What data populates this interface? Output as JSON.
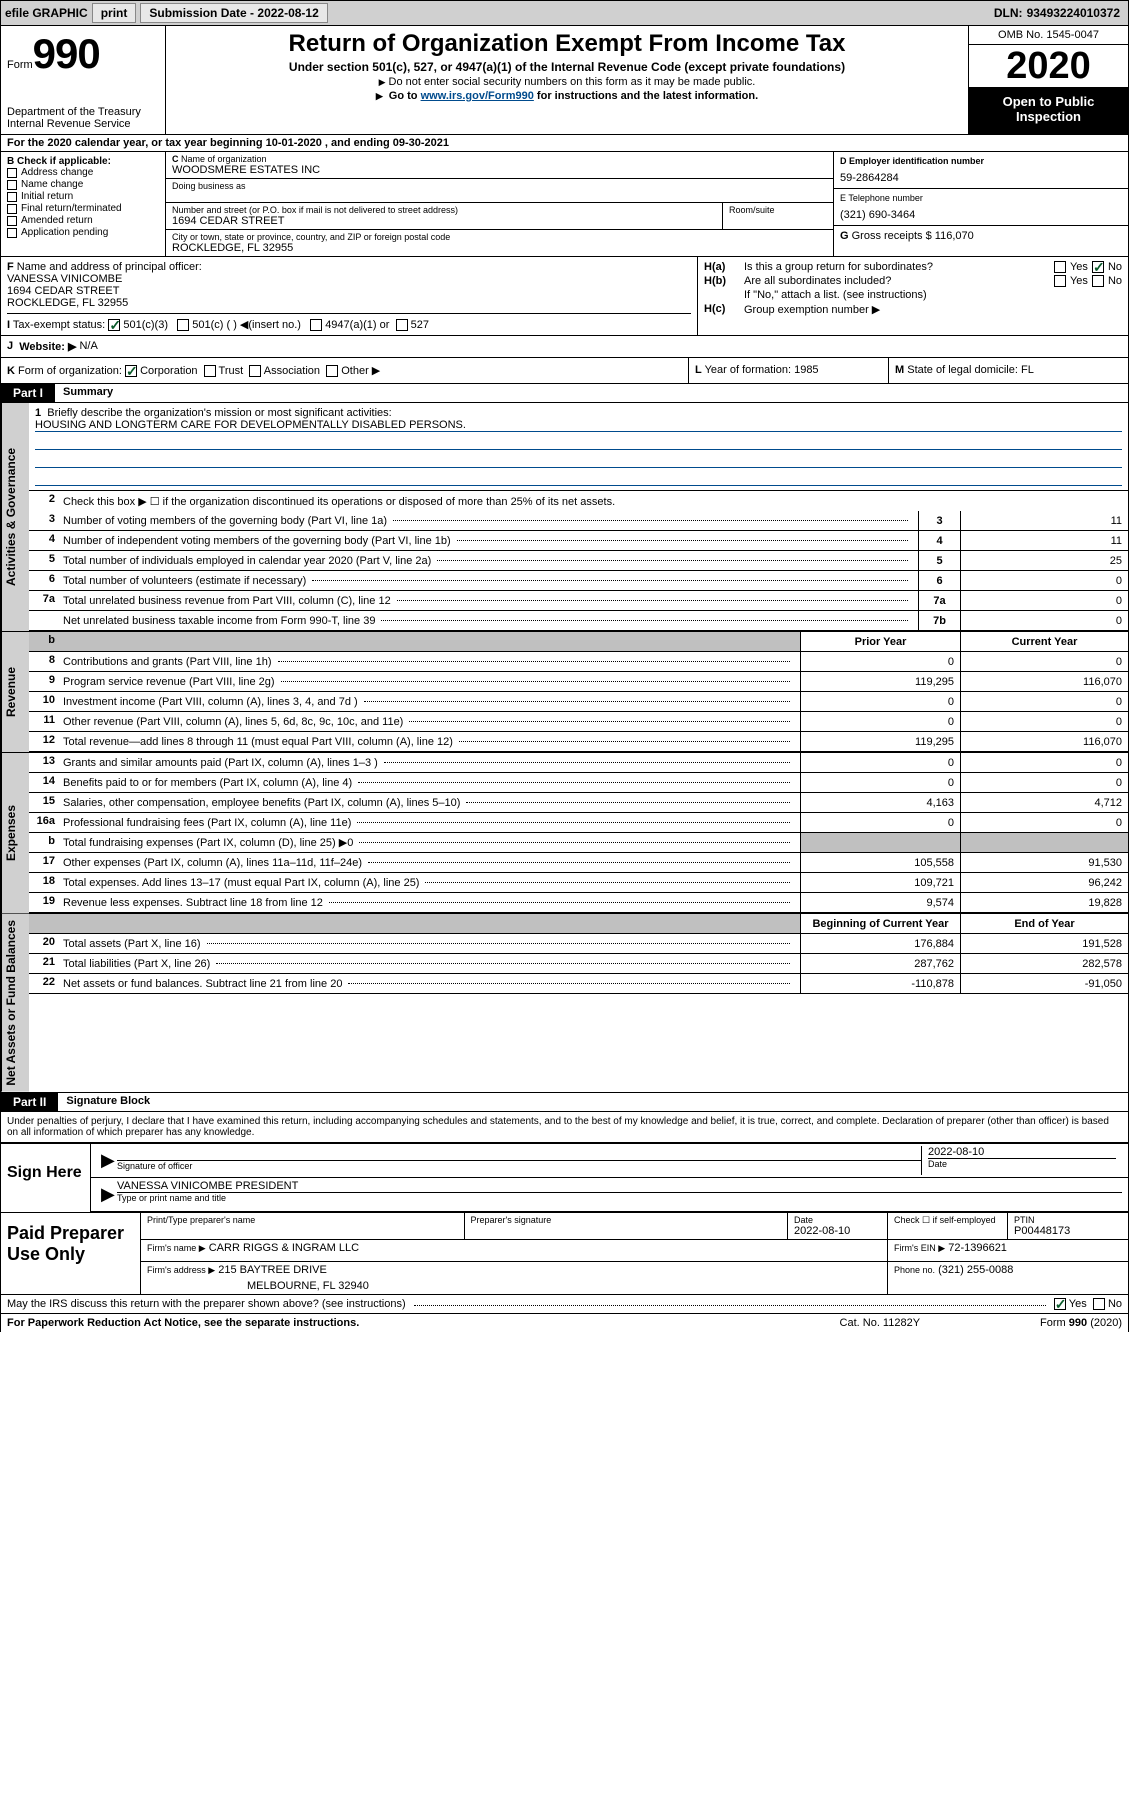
{
  "topbar": {
    "efile_label": "efile GRAPHIC",
    "print_btn": "print",
    "submission_label": "Submission Date - ",
    "submission_date": "2022-08-12",
    "dln_label": "DLN: ",
    "dln": "93493224010372"
  },
  "header": {
    "form_label": "Form",
    "form_number": "990",
    "dept": "Department of the Treasury",
    "irs": "Internal Revenue Service",
    "title": "Return of Organization Exempt From Income Tax",
    "subtitle": "Under section 501(c), 527, or 4947(a)(1) of the Internal Revenue Code (except private foundations)",
    "note1": "Do not enter social security numbers on this form as it may be made public.",
    "note2_pre": "Go to ",
    "note2_link": "www.irs.gov/Form990",
    "note2_post": " for instructions and the latest information.",
    "omb": "OMB No. 1545-0047",
    "year": "2020",
    "inspect1": "Open to Public",
    "inspect2": "Inspection"
  },
  "row_a": {
    "text": "For the 2020 calendar year, or tax year beginning 10-01-2020    , and ending 09-30-2021",
    "label_a": "A"
  },
  "section_b": {
    "label_b": "B",
    "check_label": "Check if applicable:",
    "opts": [
      "Address change",
      "Name change",
      "Initial return",
      "Final return/terminated",
      "Amended return",
      "Application pending"
    ],
    "c_label": "C",
    "name_label": "Name of organization",
    "name": "WOODSMERE ESTATES INC",
    "dba_label": "Doing business as",
    "street_label": "Number and street (or P.O. box if mail is not delivered to street address)",
    "street": "1694 CEDAR STREET",
    "suite_label": "Room/suite",
    "city_label": "City or town, state or province, country, and ZIP or foreign postal code",
    "city": "ROCKLEDGE, FL  32955",
    "d_label": "D Employer identification number",
    "ein": "59-2864284",
    "e_label": "E Telephone number",
    "phone": "(321) 690-3464",
    "g_label": "G",
    "gross_label": "Gross receipts $",
    "gross": "116,070"
  },
  "section_fh": {
    "f_label": "F",
    "f_text": "Name and address of principal officer:",
    "f_name": "VANESSA VINICOMBE",
    "f_street": "1694 CEDAR STREET",
    "f_city": "ROCKLEDGE, FL  32955",
    "ha_label": "H(a)",
    "ha_text": "Is this a group return for subordinates?",
    "ha_yes": "Yes",
    "ha_no": "No",
    "hb_label": "H(b)",
    "hb_text": "Are all subordinates included?",
    "hb_yes": "Yes",
    "hb_no": "No",
    "hb_note": "If \"No,\" attach a list. (see instructions)",
    "hc_label": "H(c)",
    "hc_text": "Group exemption number ▶"
  },
  "row_i": {
    "label": "I",
    "text": "Tax-exempt status:",
    "opt1": "501(c)(3)",
    "opt2": "501(c) (  ) ◀(insert no.)",
    "opt3": "4947(a)(1) or",
    "opt4": "527"
  },
  "row_j": {
    "label": "J",
    "text": "Website: ▶",
    "val": "N/A"
  },
  "row_k": {
    "k_label": "K",
    "k_text": "Form of organization:",
    "k_corp": "Corporation",
    "k_trust": "Trust",
    "k_assoc": "Association",
    "k_other": "Other ▶",
    "l_label": "L",
    "l_text": "Year of formation: ",
    "l_val": "1985",
    "m_label": "M",
    "m_text": "State of legal domicile: ",
    "m_val": "FL"
  },
  "part1": {
    "tab": "Part I",
    "title": "Summary",
    "vtab1": "Activities & Governance",
    "vtab2": "Revenue",
    "vtab3": "Expenses",
    "vtab4": "Net Assets or Fund Balances",
    "mission_label": "Briefly describe the organization's mission or most significant activities:",
    "mission": "HOUSING AND LONGTERM CARE FOR DEVELOPMENTALLY DISABLED PERSONS.",
    "line2": "Check this box ▶ ☐  if the organization discontinued its operations or disposed of more than 25% of its net assets.",
    "lines_gov": [
      {
        "n": "3",
        "desc": "Number of voting members of the governing body (Part VI, line 1a)",
        "box": "3",
        "val": "11"
      },
      {
        "n": "4",
        "desc": "Number of independent voting members of the governing body (Part VI, line 1b)",
        "box": "4",
        "val": "11"
      },
      {
        "n": "5",
        "desc": "Total number of individuals employed in calendar year 2020 (Part V, line 2a)",
        "box": "5",
        "val": "25"
      },
      {
        "n": "6",
        "desc": "Total number of volunteers (estimate if necessary)",
        "box": "6",
        "val": "0"
      },
      {
        "n": "7a",
        "desc": "Total unrelated business revenue from Part VIII, column (C), line 12",
        "box": "7a",
        "val": "0"
      },
      {
        "n": "",
        "desc": "Net unrelated business taxable income from Form 990-T, line 39",
        "box": "7b",
        "val": "0"
      }
    ],
    "col_prior": "Prior Year",
    "col_curr": "Current Year",
    "lines_rev": [
      {
        "n": "8",
        "desc": "Contributions and grants (Part VIII, line 1h)",
        "prior": "0",
        "curr": "0"
      },
      {
        "n": "9",
        "desc": "Program service revenue (Part VIII, line 2g)",
        "prior": "119,295",
        "curr": "116,070"
      },
      {
        "n": "10",
        "desc": "Investment income (Part VIII, column (A), lines 3, 4, and 7d )",
        "prior": "0",
        "curr": "0"
      },
      {
        "n": "11",
        "desc": "Other revenue (Part VIII, column (A), lines 5, 6d, 8c, 9c, 10c, and 11e)",
        "prior": "0",
        "curr": "0"
      },
      {
        "n": "12",
        "desc": "Total revenue—add lines 8 through 11 (must equal Part VIII, column (A), line 12)",
        "prior": "119,295",
        "curr": "116,070"
      }
    ],
    "lines_exp": [
      {
        "n": "13",
        "desc": "Grants and similar amounts paid (Part IX, column (A), lines 1–3 )",
        "prior": "0",
        "curr": "0"
      },
      {
        "n": "14",
        "desc": "Benefits paid to or for members (Part IX, column (A), line 4)",
        "prior": "0",
        "curr": "0"
      },
      {
        "n": "15",
        "desc": "Salaries, other compensation, employee benefits (Part IX, column (A), lines 5–10)",
        "prior": "4,163",
        "curr": "4,712"
      },
      {
        "n": "16a",
        "desc": "Professional fundraising fees (Part IX, column (A), line 11e)",
        "prior": "0",
        "curr": "0"
      },
      {
        "n": "b",
        "desc": "Total fundraising expenses (Part IX, column (D), line 25) ▶0",
        "prior": "",
        "curr": "",
        "grey": true
      },
      {
        "n": "17",
        "desc": "Other expenses (Part IX, column (A), lines 11a–11d, 11f–24e)",
        "prior": "105,558",
        "curr": "91,530"
      },
      {
        "n": "18",
        "desc": "Total expenses. Add lines 13–17 (must equal Part IX, column (A), line 25)",
        "prior": "109,721",
        "curr": "96,242"
      },
      {
        "n": "19",
        "desc": "Revenue less expenses. Subtract line 18 from line 12",
        "prior": "9,574",
        "curr": "19,828"
      }
    ],
    "col_begin": "Beginning of Current Year",
    "col_end": "End of Year",
    "lines_net": [
      {
        "n": "20",
        "desc": "Total assets (Part X, line 16)",
        "prior": "176,884",
        "curr": "191,528"
      },
      {
        "n": "21",
        "desc": "Total liabilities (Part X, line 26)",
        "prior": "287,762",
        "curr": "282,578"
      },
      {
        "n": "22",
        "desc": "Net assets or fund balances. Subtract line 21 from line 20",
        "prior": "-110,878",
        "curr": "-91,050"
      }
    ]
  },
  "part2": {
    "tab": "Part II",
    "title": "Signature Block",
    "declare": "Under penalties of perjury, I declare that I have examined this return, including accompanying schedules and statements, and to the best of my knowledge and belief, it is true, correct, and complete. Declaration of preparer (other than officer) is based on all information of which preparer has any knowledge."
  },
  "sign": {
    "left": "Sign Here",
    "sig_officer": "Signature of officer",
    "date_label": "Date",
    "date": "2022-08-10",
    "name": "VANESSA VINICOMBE PRESIDENT",
    "name_label": "Type or print name and title"
  },
  "prep": {
    "left": "Paid Preparer Use Only",
    "col1": "Print/Type preparer's name",
    "col2": "Preparer's signature",
    "col3_label": "Date",
    "col3": "2022-08-10",
    "col4_label": "Check ☐ if self-employed",
    "col5_label": "PTIN",
    "col5": "P00448173",
    "firm_name_label": "Firm's name      ▶",
    "firm_name": "CARR RIGGS & INGRAM LLC",
    "firm_ein_label": "Firm's EIN ▶",
    "firm_ein": "72-1396621",
    "firm_addr_label": "Firm's address ▶",
    "firm_addr1": "215 BAYTREE DRIVE",
    "firm_addr2": "MELBOURNE, FL  32940",
    "phone_label": "Phone no.",
    "phone": "(321) 255-0088"
  },
  "footer": {
    "discuss": "May the IRS discuss this return with the preparer shown above? (see instructions)",
    "yes": "Yes",
    "no": "No",
    "paperwork": "For Paperwork Reduction Act Notice, see the separate instructions.",
    "catno": "Cat. No. 11282Y",
    "formref": "Form 990 (2020)"
  },
  "colors": {
    "link": "#004b8d",
    "check_green": "#0a5a2a",
    "grey_bg": "#d0d0d0",
    "grey_cell": "#c0c0c0"
  }
}
